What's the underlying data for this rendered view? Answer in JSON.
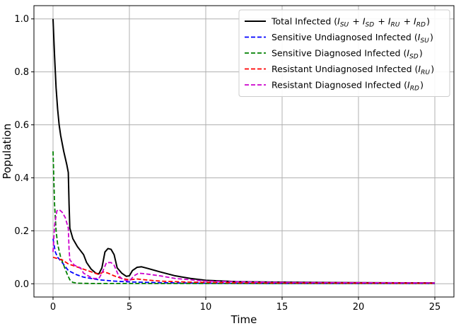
{
  "chart_data": {
    "type": "line",
    "xlabel": "Time",
    "ylabel": "Population",
    "xlim": [
      -1.25,
      26.25
    ],
    "ylim": [
      -0.05,
      1.05
    ],
    "xticks": [
      0,
      5,
      10,
      15,
      20,
      25
    ],
    "yticks": [
      0.0,
      0.2,
      0.4,
      0.6,
      0.8,
      1.0
    ],
    "xtick_labels": [
      "0",
      "5",
      "10",
      "15",
      "20",
      "25"
    ],
    "ytick_labels": [
      "0.0",
      "0.2",
      "0.4",
      "0.6",
      "0.8",
      "1.0"
    ],
    "grid": true,
    "legend_position": "top-right",
    "series": [
      {
        "name": "Total Infected",
        "legend_math": "(I_SU + I_SD + I_RU + I_RD)",
        "color": "#000000",
        "dash": "solid",
        "points": [
          [
            0,
            1.0
          ],
          [
            0.1,
            0.86
          ],
          [
            0.2,
            0.74
          ],
          [
            0.3,
            0.66
          ],
          [
            0.4,
            0.6
          ],
          [
            0.5,
            0.56
          ],
          [
            0.7,
            0.5
          ],
          [
            0.9,
            0.45
          ],
          [
            1.0,
            0.42
          ],
          [
            1.05,
            0.3
          ],
          [
            1.1,
            0.21
          ],
          [
            1.3,
            0.17
          ],
          [
            1.6,
            0.14
          ],
          [
            2.0,
            0.11
          ],
          [
            2.2,
            0.08
          ],
          [
            2.5,
            0.055
          ],
          [
            2.8,
            0.04
          ],
          [
            3.0,
            0.037
          ],
          [
            3.2,
            0.06
          ],
          [
            3.4,
            0.12
          ],
          [
            3.6,
            0.133
          ],
          [
            3.8,
            0.13
          ],
          [
            4.0,
            0.11
          ],
          [
            4.2,
            0.06
          ],
          [
            4.5,
            0.04
          ],
          [
            4.8,
            0.028
          ],
          [
            5.0,
            0.03
          ],
          [
            5.2,
            0.05
          ],
          [
            5.5,
            0.062
          ],
          [
            5.8,
            0.064
          ],
          [
            6.2,
            0.058
          ],
          [
            7,
            0.045
          ],
          [
            8,
            0.03
          ],
          [
            9,
            0.02
          ],
          [
            10,
            0.013
          ],
          [
            12,
            0.008
          ],
          [
            15,
            0.006
          ],
          [
            20,
            0.004
          ],
          [
            25,
            0.003
          ]
        ]
      },
      {
        "name": "Sensitive Undiagnosed Infected",
        "legend_math": "(I_SU)",
        "color": "#0000ff",
        "dash": "dashed",
        "points": [
          [
            0,
            0.17
          ],
          [
            0.15,
            0.12
          ],
          [
            0.3,
            0.1
          ],
          [
            0.6,
            0.08
          ],
          [
            1.0,
            0.05
          ],
          [
            1.5,
            0.035
          ],
          [
            2.0,
            0.025
          ],
          [
            3.0,
            0.015
          ],
          [
            4.0,
            0.01
          ],
          [
            5.0,
            0.007
          ],
          [
            7,
            0.004
          ],
          [
            10,
            0.002
          ],
          [
            15,
            0.001
          ],
          [
            25,
            0.001
          ]
        ]
      },
      {
        "name": "Sensitive Diagnosed Infected",
        "legend_math": "(I_SD)",
        "color": "#008000",
        "dash": "dashed",
        "points": [
          [
            0,
            0.5
          ],
          [
            0.05,
            0.4
          ],
          [
            0.1,
            0.3
          ],
          [
            0.2,
            0.2
          ],
          [
            0.3,
            0.15
          ],
          [
            0.5,
            0.1
          ],
          [
            0.7,
            0.07
          ],
          [
            0.9,
            0.04
          ],
          [
            1.1,
            0.015
          ],
          [
            1.3,
            0.005
          ],
          [
            1.6,
            0.002
          ],
          [
            2.5,
            0.001
          ],
          [
            25,
            0.001
          ]
        ]
      },
      {
        "name": "Resistant Undiagnosed Infected",
        "legend_math": "(I_RU)",
        "color": "#ff0000",
        "dash": "dashed",
        "points": [
          [
            0,
            0.1
          ],
          [
            0.3,
            0.095
          ],
          [
            0.6,
            0.09
          ],
          [
            1.0,
            0.075
          ],
          [
            1.5,
            0.065
          ],
          [
            2.0,
            0.055
          ],
          [
            2.5,
            0.045
          ],
          [
            3.0,
            0.035
          ],
          [
            3.3,
            0.045
          ],
          [
            3.6,
            0.04
          ],
          [
            4.0,
            0.03
          ],
          [
            4.5,
            0.02
          ],
          [
            5.0,
            0.015
          ],
          [
            5.5,
            0.018
          ],
          [
            6,
            0.015
          ],
          [
            7,
            0.01
          ],
          [
            9,
            0.006
          ],
          [
            12,
            0.004
          ],
          [
            15,
            0.003
          ],
          [
            25,
            0.002
          ]
        ]
      },
      {
        "name": "Resistant Diagnosed Infected",
        "legend_math": "(I_RD)",
        "color": "#cc00cc",
        "dash": "dashed",
        "points": [
          [
            0,
            0.12
          ],
          [
            0.1,
            0.22
          ],
          [
            0.25,
            0.275
          ],
          [
            0.4,
            0.28
          ],
          [
            0.6,
            0.27
          ],
          [
            0.8,
            0.25
          ],
          [
            1.0,
            0.21
          ],
          [
            1.05,
            0.13
          ],
          [
            1.1,
            0.09
          ],
          [
            1.4,
            0.07
          ],
          [
            1.8,
            0.06
          ],
          [
            2.0,
            0.04
          ],
          [
            2.3,
            0.03
          ],
          [
            2.6,
            0.02
          ],
          [
            3.0,
            0.02
          ],
          [
            3.2,
            0.04
          ],
          [
            3.5,
            0.08
          ],
          [
            3.8,
            0.08
          ],
          [
            4.0,
            0.07
          ],
          [
            4.3,
            0.03
          ],
          [
            4.6,
            0.015
          ],
          [
            5.0,
            0.01
          ],
          [
            5.3,
            0.03
          ],
          [
            5.6,
            0.04
          ],
          [
            6.0,
            0.038
          ],
          [
            7,
            0.03
          ],
          [
            8,
            0.02
          ],
          [
            10,
            0.01
          ],
          [
            15,
            0.005
          ],
          [
            25,
            0.003
          ]
        ]
      }
    ]
  }
}
